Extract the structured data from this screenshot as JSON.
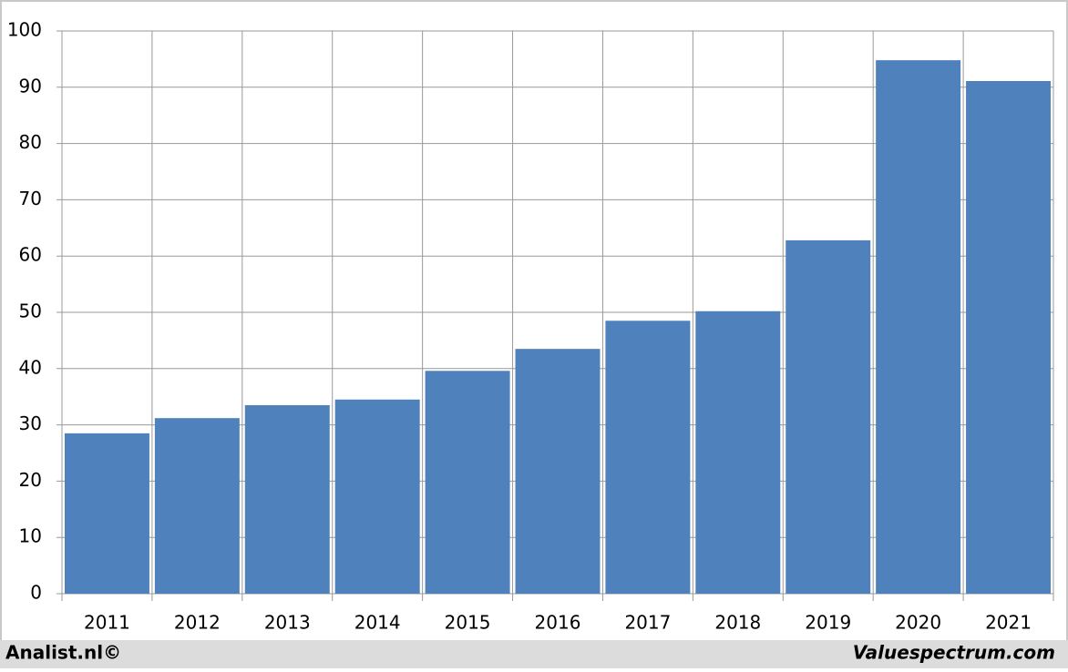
{
  "chart_data": {
    "type": "bar",
    "categories": [
      "2011",
      "2012",
      "2013",
      "2014",
      "2015",
      "2016",
      "2017",
      "2018",
      "2019",
      "2020",
      "2021"
    ],
    "values": [
      28.5,
      31.2,
      33.5,
      34.5,
      39.6,
      43.5,
      48.5,
      50.2,
      62.8,
      94.8,
      91.1
    ],
    "color": "#4f81bd",
    "ylim": [
      0,
      100
    ],
    "yticks": [
      0,
      10,
      20,
      30,
      40,
      50,
      60,
      70,
      80,
      90,
      100
    ],
    "grid": true
  },
  "footer": {
    "left": "Analist.nl©",
    "right": "Valuespectrum.com"
  }
}
